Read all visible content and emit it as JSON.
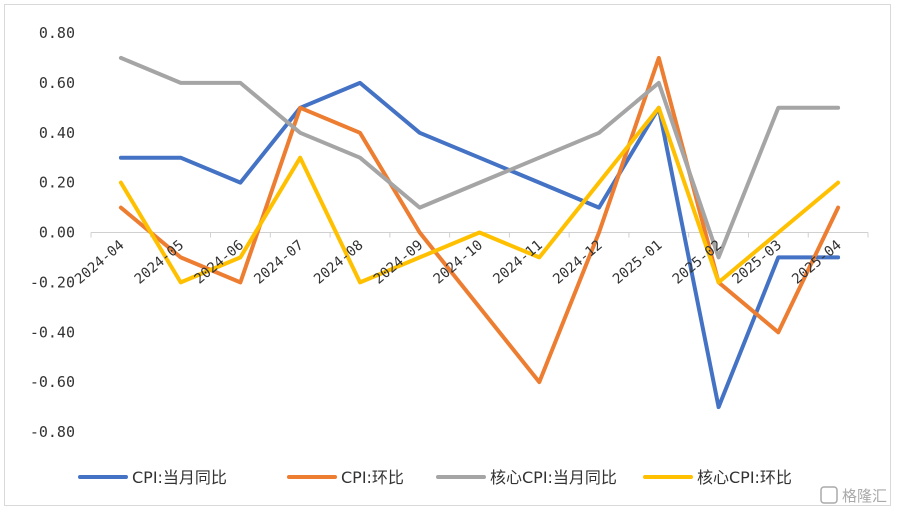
{
  "chart_data": {
    "type": "line",
    "title": "",
    "xlabel": "",
    "ylabel": "",
    "categories": [
      "2024-04",
      "2024-05",
      "2024-06",
      "2024-07",
      "2024-08",
      "2024-09",
      "2024-10",
      "2024-11",
      "2024-12",
      "2025-01",
      "2025-02",
      "2025-03",
      "2025-04"
    ],
    "y_ticks": [
      "0.80",
      "0.60",
      "0.40",
      "0.20",
      "0.00",
      "-0.20",
      "-0.40",
      "-0.60",
      "-0.80"
    ],
    "ylim": [
      -0.8,
      0.8
    ],
    "grid": false,
    "legend_position": "bottom",
    "series": [
      {
        "name": "CPI:当月同比",
        "color": "#4472C4",
        "values": [
          0.3,
          0.3,
          0.2,
          0.5,
          0.6,
          0.4,
          0.3,
          0.2,
          0.1,
          0.5,
          -0.7,
          -0.1,
          -0.1
        ]
      },
      {
        "name": "CPI:环比",
        "color": "#ED7D31",
        "values": [
          0.1,
          -0.1,
          -0.2,
          0.5,
          0.4,
          0.0,
          -0.3,
          -0.6,
          0.0,
          0.7,
          -0.2,
          -0.4,
          0.1
        ]
      },
      {
        "name": "核心CPI:当月同比",
        "color": "#A5A5A5",
        "values": [
          0.7,
          0.6,
          0.6,
          0.4,
          0.3,
          0.1,
          0.2,
          0.3,
          0.4,
          0.6,
          -0.1,
          0.5,
          0.5
        ]
      },
      {
        "name": "核心CPI:环比",
        "color": "#FFC000",
        "values": [
          0.2,
          -0.2,
          -0.1,
          0.3,
          -0.2,
          -0.1,
          0.0,
          -0.1,
          0.2,
          0.5,
          -0.2,
          0.0,
          0.2
        ]
      }
    ]
  },
  "watermark": {
    "text": "格隆汇"
  }
}
